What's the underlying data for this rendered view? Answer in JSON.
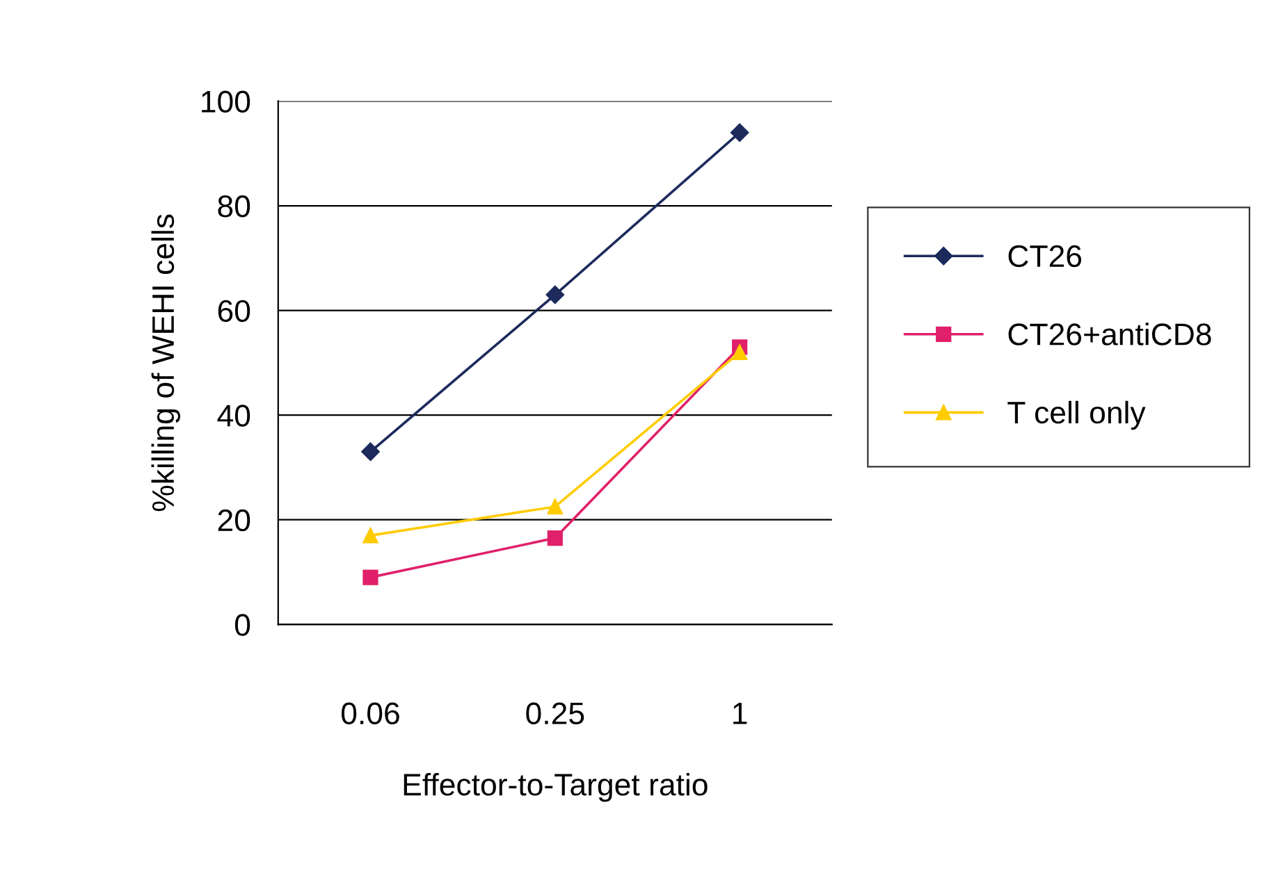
{
  "chart_data": {
    "type": "line",
    "xlabel": "Effector-to-Target ratio",
    "ylabel": "%killing of WEHI cells",
    "categories": [
      "0.06",
      "0.25",
      "1"
    ],
    "series": [
      {
        "name": "CT26",
        "color": "#1c2a5c",
        "marker": "diamond",
        "values": [
          33,
          63,
          94
        ]
      },
      {
        "name": "CT26+antiCD8",
        "color": "#e0206a",
        "marker": "square",
        "values": [
          9,
          16.5,
          53
        ]
      },
      {
        "name": "T cell only",
        "color": "#ffcc00",
        "marker": "triangle",
        "values": [
          17,
          22.5,
          52
        ]
      }
    ],
    "ylim": [
      0,
      100
    ],
    "yticks": [
      0,
      20,
      40,
      60,
      80,
      100
    ],
    "grid": "y",
    "legend": "right",
    "line_style": "solid"
  }
}
